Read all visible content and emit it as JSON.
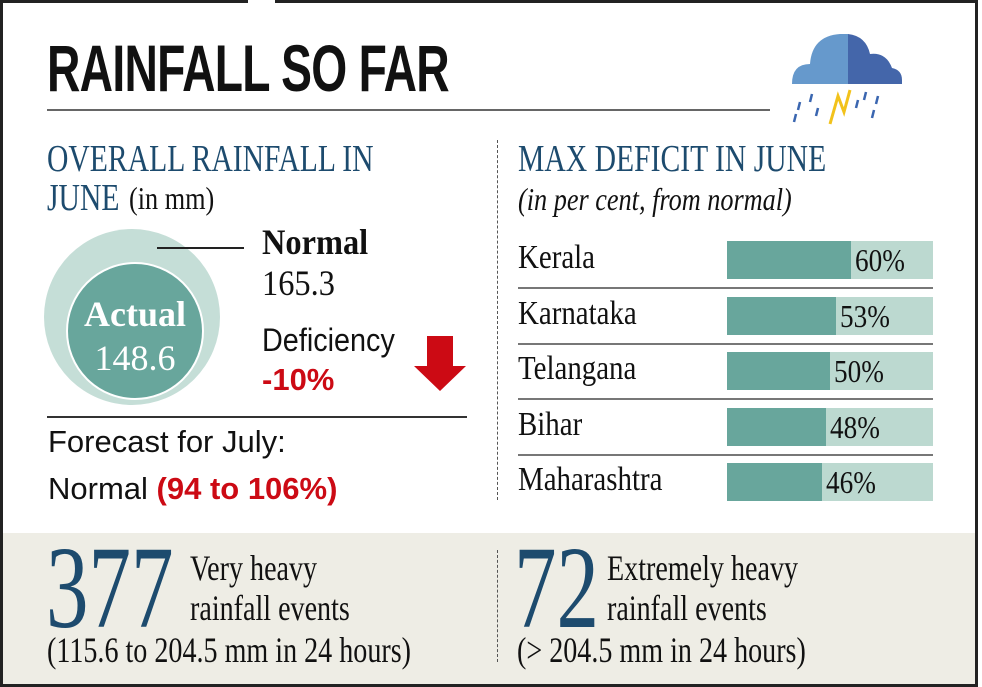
{
  "title": "RAINFALL SO FAR",
  "icon": "cloud-rain-lightning-icon",
  "colors": {
    "navy": "#1d4b6e",
    "red": "#cc0a14",
    "bar_fill": "#68a69c",
    "bar_track": "#bcd9d0",
    "normal_circle": "#c5ded7",
    "actual_circle": "#68a69c",
    "band": "#eeede5"
  },
  "overall": {
    "heading_line1": "OVERALL RAINFALL IN",
    "heading_line2": "JUNE",
    "unit": "(in mm)",
    "normal_label": "Normal",
    "normal_value": "165.3",
    "actual_label": "Actual",
    "actual_value": "148.6",
    "deficiency_label": "Deficiency",
    "deficiency_value": "-10%",
    "forecast_line1": "Forecast for July:",
    "forecast_normal": "Normal",
    "forecast_range": "(94 to 106%)"
  },
  "chart_data": {
    "type": "bar",
    "title": "MAX DEFICIT IN JUNE",
    "subtitle": "(in per cent, from normal)",
    "categories": [
      "Kerala",
      "Karnataka",
      "Telangana",
      "Bihar",
      "Maharashtra"
    ],
    "values": [
      60,
      53,
      50,
      48,
      46
    ],
    "labels": [
      "60%",
      "53%",
      "50%",
      "48%",
      "46%"
    ],
    "xlim": [
      0,
      100
    ]
  },
  "events": [
    {
      "count": "377",
      "line1": "Very heavy",
      "line2": "rainfall events",
      "range": "(115.6 to 204.5 mm in 24 hours)"
    },
    {
      "count": "72",
      "line1": "Extremely heavy",
      "line2": "rainfall events",
      "range": "(> 204.5 mm in 24 hours)"
    }
  ]
}
